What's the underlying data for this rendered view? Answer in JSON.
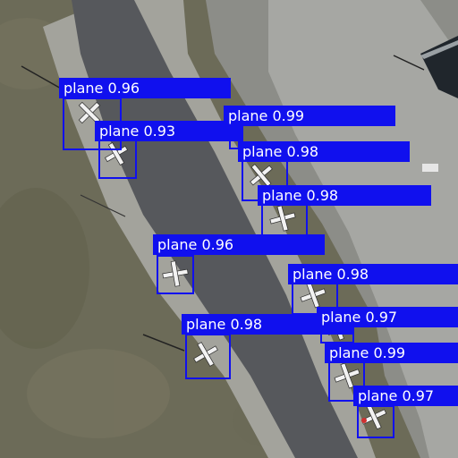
{
  "colors": {
    "box": "#1010ee",
    "label_text": "#ffffff"
  },
  "detections": [
    {
      "label": "plane",
      "score": "0.96"
    },
    {
      "label": "plane",
      "score": "0.93"
    },
    {
      "label": "plane",
      "score": "0.99"
    },
    {
      "label": "plane",
      "score": "0.98"
    },
    {
      "label": "plane",
      "score": "0.98"
    },
    {
      "label": "plane",
      "score": "0.96"
    },
    {
      "label": "plane",
      "score": "0.98"
    },
    {
      "label": "plane",
      "score": "0.97"
    },
    {
      "label": "plane",
      "score": "0.98"
    },
    {
      "label": "plane",
      "score": "0.99"
    },
    {
      "label": "plane",
      "score": "0.97"
    }
  ]
}
